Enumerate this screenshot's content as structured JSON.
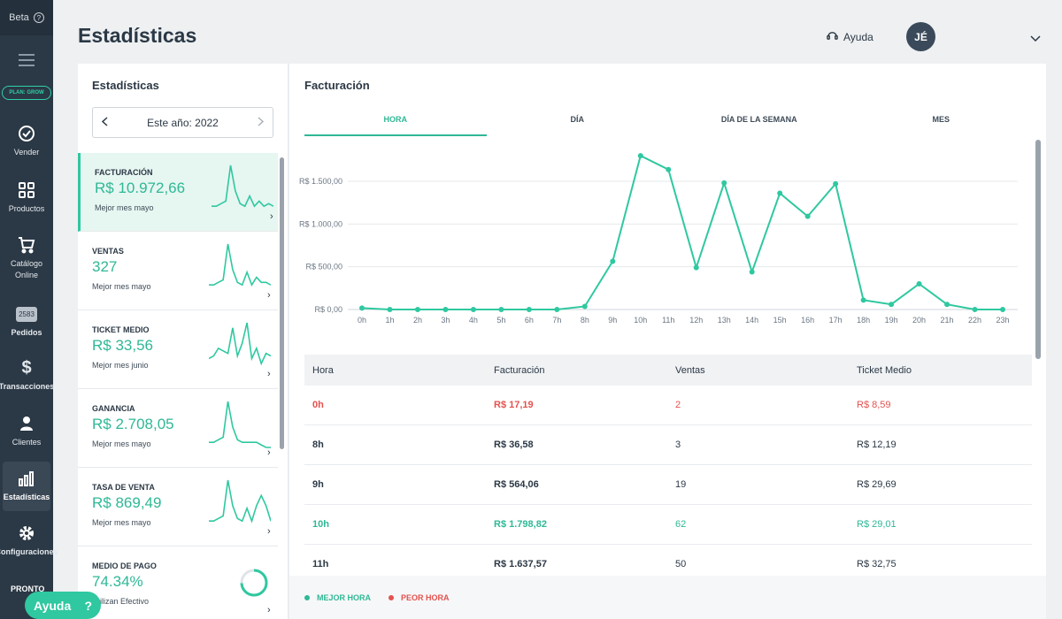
{
  "sidebar": {
    "beta": "Beta",
    "beta_q": "?",
    "plan": "PLAN: GROW",
    "items": [
      {
        "label": "Vender",
        "icon": "check-circle-icon"
      },
      {
        "label": "Productos",
        "icon": "grid-icon"
      },
      {
        "label": "Catálogo Online",
        "icon": "cart-icon"
      },
      {
        "label": "Pedidos",
        "badge": "2583"
      },
      {
        "label": "Transacciones",
        "icon": "dollar-icon"
      },
      {
        "label": "Clientes",
        "icon": "user-icon"
      },
      {
        "label": "Estadísticas",
        "icon": "bar-chart-icon",
        "active": true
      },
      {
        "label": "Configuraciones",
        "icon": "gear-icon"
      }
    ],
    "pronto": "PRONTO"
  },
  "header": {
    "title": "Estadísticas",
    "help": "Ayuda",
    "avatar": "JÉ"
  },
  "left_panel": {
    "title": "Estadísticas",
    "year": "Este año: 2022",
    "cards": [
      {
        "label": "FACTURACIÓN",
        "value": "R$ 10.972,66",
        "sub": "Mejor mes mayo",
        "spark": [
          2,
          2,
          3,
          4,
          18,
          8,
          3,
          2,
          6,
          2,
          4,
          2,
          3,
          2
        ]
      },
      {
        "label": "VENTAS",
        "value": "327",
        "sub": "Mejor mes mayo",
        "spark": [
          2,
          2,
          3,
          4,
          18,
          8,
          3,
          2,
          7,
          2,
          5,
          3,
          3,
          2
        ]
      },
      {
        "label": "TICKET MEDIO",
        "value": "R$ 33,56",
        "sub": "Mejor mes junio",
        "spark": [
          4,
          5,
          8,
          7,
          6,
          16,
          5,
          10,
          18,
          4,
          8,
          2,
          6,
          5
        ]
      },
      {
        "label": "GANANCIA",
        "value": "R$ 2.708,05",
        "sub": "Mejor mes mayo",
        "spark": [
          2,
          2,
          3,
          4,
          18,
          8,
          3,
          2,
          2,
          2,
          2,
          1,
          0,
          0
        ]
      },
      {
        "label": "TASA DE VENTA",
        "value": "R$ 869,49",
        "sub": "Mejor mes mayo",
        "spark": [
          2,
          2,
          3,
          4,
          18,
          8,
          3,
          2,
          7,
          2,
          8,
          12,
          8,
          2
        ]
      },
      {
        "label": "MEDIO DE PAGO",
        "value": "74.34%",
        "sub": "Utilizan Efectivo",
        "donut": 0.7434
      }
    ]
  },
  "main": {
    "title": "Facturación",
    "tabs": [
      "HORA",
      "DÍA",
      "DÍA DE LA SEMANA",
      "MES"
    ],
    "table": {
      "headers": [
        "Hora",
        "Facturación",
        "Ventas",
        "Ticket Medio"
      ],
      "rows": [
        {
          "hora": "0h",
          "fact": "R$ 17,19",
          "ventas": "2",
          "ticket": "R$ 8,59",
          "type": "worst"
        },
        {
          "hora": "8h",
          "fact": "R$ 36,58",
          "ventas": "3",
          "ticket": "R$ 12,19",
          "type": ""
        },
        {
          "hora": "9h",
          "fact": "R$ 564,06",
          "ventas": "19",
          "ticket": "R$ 29,69",
          "type": ""
        },
        {
          "hora": "10h",
          "fact": "R$ 1.798,82",
          "ventas": "62",
          "ticket": "R$ 29,01",
          "type": "best"
        },
        {
          "hora": "11h",
          "fact": "R$ 1.637,57",
          "ventas": "50",
          "ticket": "R$ 32,75",
          "type": ""
        }
      ]
    },
    "legend": {
      "best": "MEJOR HORA",
      "worst": "PEOR HORA"
    }
  },
  "colors": {
    "accent": "#2fc8a0",
    "worst": "#e4524f"
  },
  "fab": {
    "label": "Ayuda",
    "icon": "?"
  },
  "chart_data": {
    "type": "line",
    "x": [
      "0h",
      "1h",
      "2h",
      "3h",
      "4h",
      "5h",
      "6h",
      "7h",
      "8h",
      "9h",
      "10h",
      "11h",
      "12h",
      "13h",
      "14h",
      "15h",
      "16h",
      "17h",
      "18h",
      "19h",
      "20h",
      "21h",
      "22h",
      "23h"
    ],
    "values": [
      17.19,
      0,
      0,
      0,
      0,
      0,
      0,
      0,
      36.58,
      564.06,
      1798.82,
      1637.57,
      490,
      1480,
      440,
      1360,
      1090,
      1470,
      110,
      60,
      300,
      60,
      0,
      0
    ],
    "yticks": [
      "R$ 0,00",
      "R$ 500,00",
      "R$ 1.000,00",
      "R$ 1.500,00"
    ],
    "ylim": [
      0,
      1500
    ],
    "grid": true
  }
}
